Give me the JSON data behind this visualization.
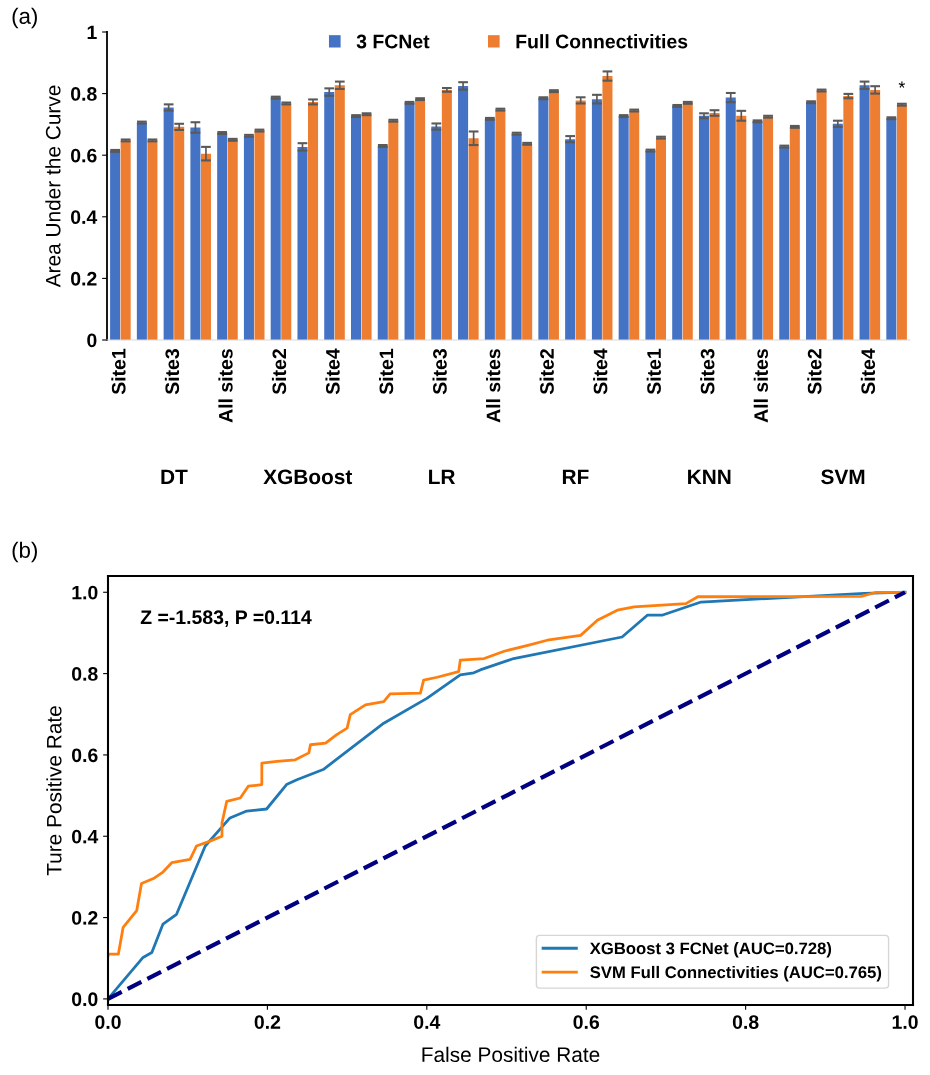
{
  "chart_data": [
    {
      "type": "bar",
      "ylabel": "Area Under the Curve",
      "ylim": [
        0,
        1
      ],
      "yticks": [
        0,
        0.2,
        0.4,
        0.6,
        0.8,
        1
      ],
      "legend": "top",
      "grid": false,
      "categories": [
        "Site1",
        null,
        "Site3",
        null,
        "All sites",
        null,
        "Site2",
        null,
        "Site4",
        null,
        "Site1",
        null,
        "Site3",
        null,
        "All sites",
        null,
        "Site2",
        null,
        "Site4",
        null,
        "Site1",
        null,
        "Site3",
        null,
        "All sites",
        null,
        "Site2",
        null,
        "Site4",
        null
      ],
      "annotations": [
        "(a)",
        "DT",
        "XGBoost",
        "LR",
        "RF",
        "KNN",
        "SVM"
      ],
      "series": [
        {
          "name": "3 FCNet",
          "color": "#4472c4",
          "values": [
            0.614,
            0.706,
            0.755,
            0.69,
            0.672,
            0.663,
            0.787,
            0.627,
            0.805,
            0.727,
            0.63,
            0.77,
            0.693,
            0.825,
            0.718,
            0.67,
            0.785,
            0.652,
            0.782,
            0.727,
            0.615,
            0.76,
            0.728,
            0.787,
            0.71,
            0.628,
            0.772,
            0.702,
            0.827,
            0.72
          ],
          "errors": [
            0.003,
            0.003,
            0.01,
            0.017,
            0.003,
            0.003,
            0.003,
            0.012,
            0.012,
            0.003,
            0.003,
            0.003,
            0.01,
            0.012,
            0.003,
            0.003,
            0.003,
            0.01,
            0.014,
            0.003,
            0.003,
            0.003,
            0.008,
            0.015,
            0.003,
            0.003,
            0.003,
            0.01,
            0.012,
            0.003
          ]
        },
        {
          "name": "Full Connectivities",
          "color": "#ed7d31",
          "values": [
            0.648,
            0.648,
            0.692,
            0.605,
            0.65,
            0.68,
            0.768,
            0.773,
            0.827,
            0.733,
            0.712,
            0.782,
            0.812,
            0.655,
            0.748,
            0.637,
            0.808,
            0.778,
            0.857,
            0.745,
            0.657,
            0.77,
            0.737,
            0.728,
            0.725,
            0.692,
            0.81,
            0.792,
            0.812,
            0.764
          ],
          "errors": [
            0.003,
            0.003,
            0.01,
            0.022,
            0.003,
            0.003,
            0.003,
            0.008,
            0.012,
            0.003,
            0.003,
            0.003,
            0.006,
            0.022,
            0.003,
            0.003,
            0.003,
            0.01,
            0.015,
            0.003,
            0.003,
            0.003,
            0.009,
            0.016,
            0.003,
            0.003,
            0.003,
            0.007,
            0.012,
            0.003
          ],
          "value_labels": [
            null,
            null,
            null,
            null,
            null,
            null,
            null,
            null,
            null,
            null,
            null,
            null,
            null,
            null,
            null,
            null,
            null,
            null,
            null,
            null,
            null,
            null,
            null,
            null,
            null,
            null,
            null,
            null,
            null,
            "*"
          ]
        }
      ]
    },
    {
      "type": "line",
      "xlabel": "False Positive Rate",
      "ylabel": "Ture Positive Rate",
      "xlim": [
        0,
        1.01
      ],
      "ylim": [
        -0.015,
        1.04
      ],
      "xticks": [
        {
          "value": 0,
          "label": "0.0"
        },
        0.2,
        0.4,
        0.6,
        0.8,
        {
          "value": 1,
          "label": "1.0"
        }
      ],
      "yticks": [
        {
          "value": 0,
          "label": "0.0"
        },
        0.2,
        0.4,
        0.6,
        0.8,
        {
          "value": 1,
          "label": "1.0"
        }
      ],
      "legend": "bottom right",
      "grid": false,
      "annotations": [
        "(b)",
        "Z =-1.583, P =0.114"
      ],
      "series": [
        {
          "name": "XGBoost 3 FCNet (AUC=0.728)",
          "color": "#1f77b4",
          "line_style": "solid",
          "x": [
            0,
            0.044,
            0.055,
            0.069,
            0.086,
            0.122,
            0.153,
            0.174,
            0.199,
            0.224,
            0.237,
            0.27,
            0.346,
            0.4,
            0.442,
            0.459,
            0.467,
            0.509,
            0.645,
            0.677,
            0.696,
            0.744,
            0.949,
            1.0
          ],
          "values": [
            0,
            0.102,
            0.114,
            0.184,
            0.208,
            0.376,
            0.445,
            0.462,
            0.467,
            0.527,
            0.539,
            0.564,
            0.678,
            0.739,
            0.797,
            0.802,
            0.809,
            0.837,
            0.89,
            0.944,
            0.944,
            0.976,
            0.997,
            1.0
          ]
        },
        {
          "name": "SVM Full Connectivities (AUC=0.765)",
          "color": "#ff7f0e",
          "line_style": "solid",
          "x": [
            0,
            0,
            0.013,
            0.019,
            0.036,
            0.042,
            0.057,
            0.069,
            0.08,
            0.103,
            0.111,
            0.128,
            0.143,
            0.143,
            0.149,
            0.166,
            0.176,
            0.193,
            0.193,
            0.212,
            0.235,
            0.252,
            0.254,
            0.273,
            0.287,
            0.3,
            0.304,
            0.323,
            0.346,
            0.354,
            0.392,
            0.396,
            0.413,
            0.44,
            0.442,
            0.472,
            0.497,
            0.528,
            0.551,
            0.593,
            0.614,
            0.639,
            0.66,
            0.725,
            0.74,
            0.945,
            0.964,
            1.0
          ],
          "values": [
            0.106,
            0.11,
            0.11,
            0.176,
            0.217,
            0.284,
            0.296,
            0.312,
            0.335,
            0.343,
            0.376,
            0.388,
            0.4,
            0.433,
            0.486,
            0.494,
            0.523,
            0.527,
            0.58,
            0.584,
            0.588,
            0.605,
            0.625,
            0.629,
            0.65,
            0.666,
            0.699,
            0.723,
            0.731,
            0.75,
            0.752,
            0.784,
            0.791,
            0.805,
            0.833,
            0.837,
            0.855,
            0.87,
            0.882,
            0.894,
            0.931,
            0.956,
            0.964,
            0.972,
            0.989,
            0.99,
            1.0,
            1.0
          ]
        },
        {
          "color": "#000080",
          "line_style": "dashed",
          "x": [
            0,
            1
          ],
          "values": [
            0,
            1
          ]
        }
      ]
    }
  ]
}
